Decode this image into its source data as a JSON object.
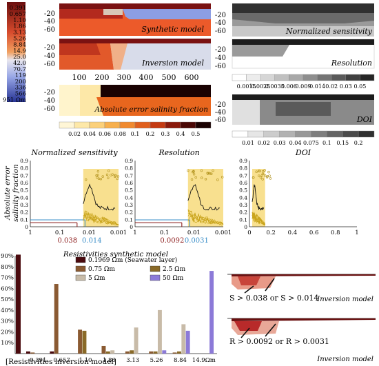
{
  "colorbar_resistivity": {
    "labels": [
      "0.391",
      "0.657",
      "1.10",
      "1.86",
      "3.13",
      "5.26",
      "8.84",
      "14.9",
      "25.0",
      "42.0",
      "70.7",
      "119",
      "200",
      "336",
      "566",
      "951 Ωm"
    ],
    "colors": [
      "#6b0e0e",
      "#8c1616",
      "#a82020",
      "#c0302a",
      "#d64a2c",
      "#e8642a",
      "#f0833a",
      "#f2a060",
      "#f0c8a4",
      "#d8dce8",
      "#b8c4ea",
      "#97a6e6",
      "#7484d8",
      "#5a68c8",
      "#3f4bb0",
      "#263394"
    ]
  },
  "panel_labels": {
    "synthetic": "Synthetic model",
    "inversion": "Inversion model",
    "abs_error": "Absolute error salinity fraction",
    "norm_sens": "Normalized sensitivity",
    "resolution": "Resolution",
    "doi": "DOI"
  },
  "depth_ticks": [
    "-20",
    "-40",
    "-60"
  ],
  "x_ticks": [
    "100",
    "200",
    "300",
    "400",
    "500",
    "600"
  ],
  "abs_error_scale": {
    "labels": [
      "0.02",
      "0.04",
      "0.06",
      "0.08",
      "0.1",
      "0.2",
      "0.3",
      "0.4",
      "0.5"
    ],
    "colors": [
      "#fff6d6",
      "#fde8a8",
      "#fbd07a",
      "#f7b04e",
      "#f08a30",
      "#e0601e",
      "#c43a12",
      "#8a1a0c",
      "#4a0806",
      "#1a0202"
    ]
  },
  "sens_scale": {
    "labels": [
      "0.0015",
      "0.0025",
      "0.0035",
      "0.006",
      "0.009",
      "0.014",
      "0.02",
      "0.03",
      "0.05"
    ],
    "colors": [
      "#ffffff",
      "#ececec",
      "#d6d6d6",
      "#c0c0c0",
      "#a8a8a8",
      "#8e8e8e",
      "#747474",
      "#5a5a5a",
      "#404040",
      "#262626"
    ]
  },
  "doi_scale": {
    "labels": [
      "0.01",
      "0.02",
      "0.03",
      "0.04",
      "0.075",
      "0.1",
      "0.15",
      "0.2"
    ],
    "colors": [
      "#ffffff",
      "#e6e6e6",
      "#cccccc",
      "#b2b2b2",
      "#989898",
      "#7e7e7e",
      "#646464",
      "#4a4a4a",
      "#303030"
    ]
  },
  "scatter_panels": [
    {
      "title": "Normalized sensitivity",
      "ticks": [
        "1",
        "0.1",
        "0.01",
        "0.001"
      ],
      "thresholds": [
        "0.038",
        "0.014"
      ]
    },
    {
      "title": "Resolution",
      "ticks": [
        "1",
        "0.1",
        "0.01",
        "0.001"
      ],
      "thresholds": [
        "0.0092",
        "0.0031"
      ]
    },
    {
      "title": "DOI",
      "ticks": [
        "0",
        "0.2",
        "0.4",
        "0.6",
        "0.8",
        "1"
      ],
      "thresholds": []
    }
  ],
  "scatter_yticks": [
    "0.9",
    "0.8",
    "0.7",
    "0.6",
    "0.5",
    "0.4",
    "0.3",
    "0.2",
    "0.1",
    "0"
  ],
  "scatter_ylabel": [
    "Absolute error",
    "salinity fraction"
  ],
  "threshold_colors": {
    "a": "#8e2020",
    "b": "#3a8ec8"
  },
  "chart_data": {
    "type": "bar",
    "title": "Resistivities synthetic model",
    "xlabel": "[Resistivities inversion model]",
    "categories": [
      "0.391",
      "0.657",
      "1.10",
      "1.86",
      "3.13",
      "5.26",
      "8.84",
      "14.9Ωm"
    ],
    "ylim": [
      0,
      90
    ],
    "yticks": [
      "10%",
      "20%",
      "30%",
      "40%",
      "50%",
      "60%",
      "70%",
      "80%",
      "90%"
    ],
    "legend_position": "top-center",
    "series": [
      {
        "name": "0.1969 Ωm (Seawater layer)",
        "color": "#4a0a0e",
        "values": [
          2,
          2,
          0,
          0,
          0,
          0,
          0,
          0
        ]
      },
      {
        "name": "0.75 Ωm",
        "color": "#8a5a32",
        "values": [
          1,
          64,
          22,
          7,
          2,
          2,
          1,
          0
        ]
      },
      {
        "name": "2.5 Ωm",
        "color": "#8a6a28",
        "values": [
          0,
          0,
          21,
          2,
          3,
          2,
          2,
          0
        ]
      },
      {
        "name": "5 Ωm",
        "color": "#c8bba8",
        "values": [
          0,
          0,
          0,
          3,
          24,
          40,
          27,
          0
        ]
      },
      {
        "name": "50 Ωm",
        "color": "#8c7ad8",
        "values": [
          0,
          0,
          0,
          0,
          0,
          3,
          21,
          76
        ]
      }
    ],
    "extra_first_bar": 91
  },
  "annotations": {
    "sens_inset": "S > 0.038 or S > 0.014",
    "res_inset": "R > 0.0092 or R > 0.0031",
    "inset_label": "Inversion model"
  }
}
